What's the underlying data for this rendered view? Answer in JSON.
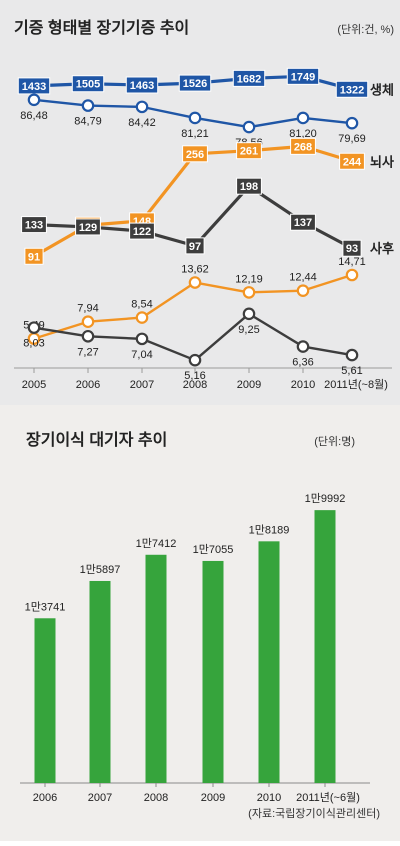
{
  "chart_data": [
    {
      "type": "line",
      "title": "기증 형태별 장기기증 추이",
      "unit_note": "(단위:건, %)",
      "x": [
        "2005",
        "2006",
        "2007",
        "2008",
        "2009",
        "2010",
        "2011년(~8월)"
      ],
      "series": [
        {
          "name": "생체",
          "kind": "count",
          "color": "#1f56a6",
          "values": [
            1433,
            1505,
            1463,
            1526,
            1682,
            1749,
            1322
          ],
          "labels": [
            "1433",
            "1505",
            "1463",
            "1526",
            "1682",
            "1749",
            "1322"
          ]
        },
        {
          "name": "",
          "kind": "percent",
          "color": "#1f56a6",
          "values": [
            86.48,
            84.79,
            84.42,
            81.21,
            78.56,
            81.2,
            79.69
          ],
          "labels": [
            "86,48",
            "84,79",
            "84,42",
            "81,21",
            "78,56",
            "81,20",
            "79,69"
          ]
        },
        {
          "name": "뇌사",
          "kind": "count",
          "color": "#f29423",
          "values": [
            91,
            141,
            148,
            256,
            261,
            268,
            244
          ],
          "labels": [
            "91",
            "141",
            "148",
            "256",
            "261",
            "268",
            "244"
          ]
        },
        {
          "name": "",
          "kind": "percent",
          "color": "#f29423",
          "values": [
            5.49,
            7.94,
            8.54,
            13.62,
            12.19,
            12.44,
            14.71
          ],
          "labels": [
            "5,49",
            "7,94",
            "8,54",
            "13,62",
            "12,19",
            "12,44",
            "14,71"
          ]
        },
        {
          "name": "사후",
          "kind": "count",
          "color": "#3d3d3d",
          "values": [
            133,
            129,
            122,
            97,
            198,
            137,
            93
          ],
          "labels": [
            "133",
            "129",
            "122",
            "97",
            "198",
            "137",
            "93"
          ]
        },
        {
          "name": "",
          "kind": "percent",
          "color": "#3d3d3d",
          "values": [
            8.03,
            7.27,
            7.04,
            5.16,
            9.25,
            6.36,
            5.61
          ],
          "labels": [
            "8,03",
            "7,27",
            "7,04",
            "5,16",
            "9,25",
            "6,36",
            "5,61"
          ]
        }
      ]
    },
    {
      "type": "bar",
      "title": "장기이식 대기자 추이",
      "unit_note": "(단위:명)",
      "categories": [
        "2006",
        "2007",
        "2008",
        "2009",
        "2010",
        "2011년(~6월)"
      ],
      "values": [
        13741,
        15897,
        17412,
        17055,
        18189,
        19992
      ],
      "labels": [
        "1만3741",
        "1만5897",
        "1만7412",
        "1만7055",
        "1만8189",
        "1만9992"
      ],
      "color": "#36a43c",
      "source": "(자료:국립장기이식관리센터)"
    }
  ]
}
